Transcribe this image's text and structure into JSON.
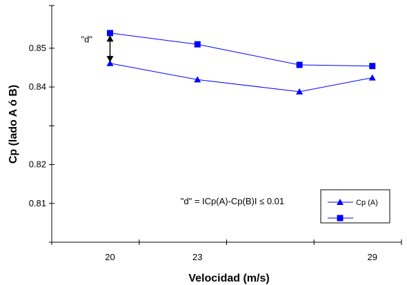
{
  "chart_data": {
    "type": "line",
    "xlabel": "Velocidad (m/s)",
    "ylabel": "Cp (lado A ó B)",
    "xlim": [
      18,
      30
    ],
    "ylim": [
      0.8,
      0.861
    ],
    "x_ticks": [
      20,
      23,
      29
    ],
    "x_tick_labels": [
      "20",
      "23",
      "29"
    ],
    "y_tick_labels": [
      {
        "value": 0.85,
        "label": "0.85"
      },
      {
        "value": 0.84,
        "label": "0.84"
      },
      {
        "value": 0.82,
        "label": "0.82"
      },
      {
        "value": 0.81,
        "label": "0.81"
      }
    ],
    "y_unlabeled_ticks": [
      0.83
    ],
    "grid": false,
    "legend_position": "bottom-right",
    "series": [
      {
        "name": "Cp (A)",
        "marker": "triangle",
        "color": "#0000ff",
        "x": [
          20,
          23,
          26.5,
          29
        ],
        "y": [
          0.8461,
          0.8419,
          0.8388,
          0.8424
        ]
      },
      {
        "name": "",
        "marker": "square",
        "color": "#0000ff",
        "x": [
          20,
          23,
          26.5,
          29
        ],
        "y": [
          0.8539,
          0.851,
          0.8457,
          0.8454
        ]
      }
    ],
    "annotations": [
      {
        "text": "\"d\"",
        "x": 19.2,
        "y": 0.8515
      },
      {
        "text": "\"d\" = ICp(A)-Cp(B)I ≤ 0.01",
        "x": 24.2,
        "y": 0.8098
      }
    ],
    "double_arrow": {
      "x": 20,
      "y_from": 0.8533,
      "y_to": 0.8464,
      "color": "#000000"
    }
  }
}
